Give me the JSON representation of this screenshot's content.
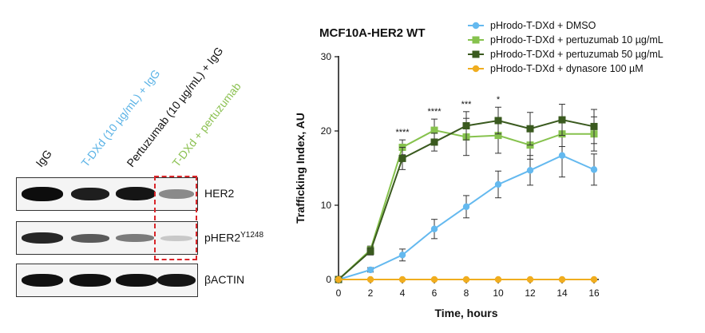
{
  "blot": {
    "lanes": [
      {
        "label": "IgG",
        "color": "#111111"
      },
      {
        "label": "T-DXd (10 µg/mL) + IgG",
        "color": "#5bb3e6"
      },
      {
        "label": "Pertuzumab (10 µg/mL) + IgG",
        "color": "#111111"
      },
      {
        "label": "T-DXd + pertuzumab",
        "color": "#8cc152"
      }
    ],
    "rows": [
      {
        "label": "HER2",
        "sup": ""
      },
      {
        "label": "pHER2",
        "sup": "Y1248"
      },
      {
        "label": "βACTIN",
        "sup": ""
      }
    ]
  },
  "chart_data": {
    "type": "line",
    "title": "MCF10A-HER2 WT",
    "xlabel": "Time, hours",
    "ylabel": "Trafficking Index, AU",
    "xlim": [
      0,
      16
    ],
    "ylim": [
      0,
      30
    ],
    "xticks": [
      "0",
      "2",
      "4",
      "6",
      "8",
      "10",
      "12",
      "14",
      "16"
    ],
    "yticks": [
      "0",
      "10",
      "20",
      "30"
    ],
    "x": [
      0,
      2,
      4,
      6,
      8,
      10,
      12,
      14,
      16
    ],
    "series": [
      {
        "name": "pHrodo-T-DXd + DMSO",
        "color": "#64b9ef",
        "marker": "circle",
        "values": [
          0,
          1.3,
          3.3,
          6.8,
          9.8,
          12.8,
          14.7,
          16.7,
          14.8
        ],
        "errors": [
          0,
          0.3,
          0.8,
          1.3,
          1.5,
          1.8,
          2.0,
          2.9,
          2.1
        ]
      },
      {
        "name": "pHrodo-T-DXd + pertuzumab 10 µg/mL",
        "color": "#86c24d",
        "marker": "square",
        "values": [
          0,
          4.0,
          17.8,
          20.1,
          19.2,
          19.4,
          18.1,
          19.6,
          19.6
        ],
        "errors": [
          0,
          0.5,
          1.0,
          1.5,
          2.5,
          2.4,
          1.9,
          1.7,
          2.3
        ]
      },
      {
        "name": "pHrodo-T-DXd + pertuzumab 50 µg/mL",
        "color": "#3a5a1f",
        "marker": "square",
        "values": [
          0,
          3.8,
          16.3,
          18.5,
          20.7,
          21.4,
          20.3,
          21.5,
          20.6
        ],
        "errors": [
          0,
          0.5,
          1.5,
          1.2,
          1.9,
          1.8,
          2.2,
          2.1,
          2.3
        ]
      },
      {
        "name": "pHrodo-T-DXd + dynasore 100 µM",
        "color": "#f0ad1f",
        "marker": "circle",
        "values": [
          0,
          0,
          0,
          0,
          0,
          0,
          0,
          0,
          0
        ],
        "errors": [
          0,
          0,
          0,
          0,
          0,
          0,
          0,
          0,
          0
        ]
      }
    ],
    "annotations": [
      {
        "x": 4,
        "text": "****"
      },
      {
        "x": 6,
        "text": "****"
      },
      {
        "x": 8,
        "text": "***"
      },
      {
        "x": 10,
        "text": "*"
      }
    ],
    "legend_position": "top-right"
  }
}
